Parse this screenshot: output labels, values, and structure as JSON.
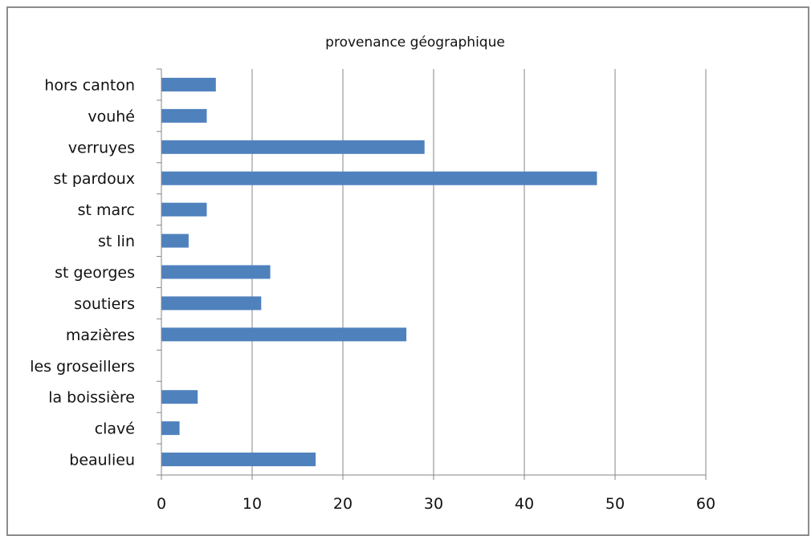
{
  "chart_data": {
    "type": "bar",
    "orientation": "horizontal",
    "title": "provenance géographique",
    "categories": [
      "beaulieu",
      "clavé",
      "la boissière",
      "les groseillers",
      "mazières",
      "soutiers",
      "st georges",
      "st lin",
      "st marc",
      "st pardoux",
      "verruyes",
      "vouhé",
      "hors canton"
    ],
    "values": [
      17,
      2,
      4,
      0,
      27,
      11,
      12,
      3,
      5,
      48,
      29,
      5,
      6
    ],
    "xlim": [
      0,
      60
    ],
    "xticks": [
      0,
      10,
      20,
      30,
      40,
      50,
      60
    ],
    "tick_labels": [
      "0",
      "10",
      "20",
      "30",
      "40",
      "50",
      "60"
    ],
    "grid": true,
    "legend": "none",
    "colors": {
      "bar": "#4f81bd",
      "grid": "#868686",
      "axis": "#868686",
      "frame": "#8c8c8c"
    }
  }
}
